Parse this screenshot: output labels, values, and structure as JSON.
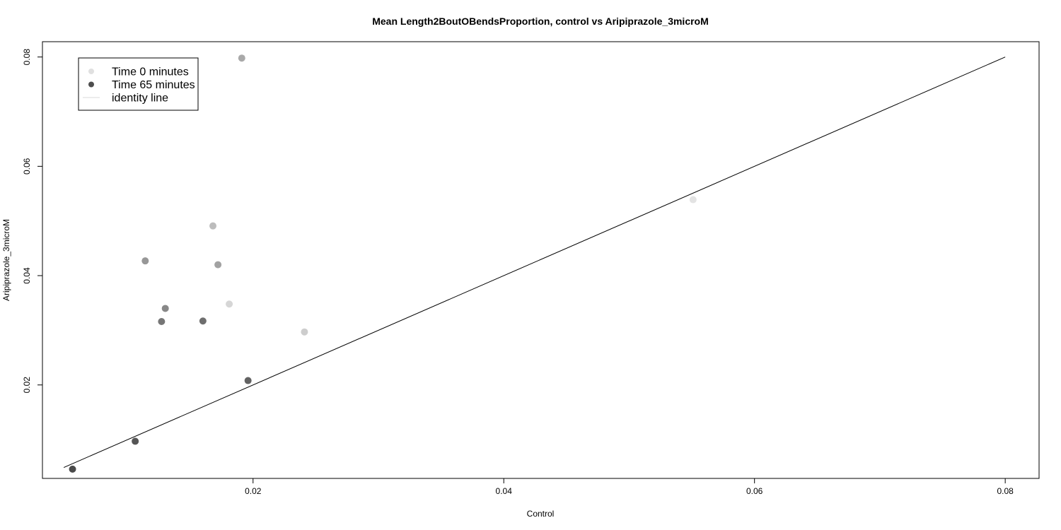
{
  "chart_data": {
    "type": "scatter",
    "title": "Mean Length2BoutOBendsProportion, control vs Aripiprazole_3microM",
    "xlabel": "Control",
    "ylabel": "Aripiprazole_3microM",
    "xlim": [
      0.0032,
      0.0827
    ],
    "ylim": [
      0.0029,
      0.0828
    ],
    "xticks": [
      0.02,
      0.04,
      0.06,
      0.08
    ],
    "xtick_labels": [
      "0.02",
      "0.04",
      "0.06",
      "0.08"
    ],
    "yticks": [
      0.02,
      0.04,
      0.06,
      0.08
    ],
    "ytick_labels": [
      "0.02",
      "0.04",
      "0.06",
      "0.08"
    ],
    "grid": false,
    "legend_position": "top-left",
    "legend": [
      {
        "label": "Time 0 minutes",
        "kind": "point",
        "color": "#e0e0e0"
      },
      {
        "label": "Time 65 minutes",
        "kind": "point",
        "color": "#4d4d4d"
      },
      {
        "label": "identity line",
        "kind": "line",
        "color": "#d8d8d8"
      }
    ],
    "identity_line": {
      "from": [
        0.0049,
        0.0049
      ],
      "to": [
        0.08,
        0.08
      ],
      "color": "#000000"
    },
    "points": [
      {
        "x": 0.0551,
        "y": 0.0539,
        "color": "#e3e3e3"
      },
      {
        "x": 0.0241,
        "y": 0.0297,
        "color": "#cdcdcd"
      },
      {
        "x": 0.0181,
        "y": 0.0348,
        "color": "#d6d6d6"
      },
      {
        "x": 0.0168,
        "y": 0.0491,
        "color": "#bcbcbc"
      },
      {
        "x": 0.0191,
        "y": 0.0798,
        "color": "#a9a9a9"
      },
      {
        "x": 0.0172,
        "y": 0.042,
        "color": "#a2a2a2"
      },
      {
        "x": 0.0114,
        "y": 0.0427,
        "color": "#979797"
      },
      {
        "x": 0.013,
        "y": 0.034,
        "color": "#888888"
      },
      {
        "x": 0.0127,
        "y": 0.0316,
        "color": "#767676"
      },
      {
        "x": 0.016,
        "y": 0.0317,
        "color": "#6e6e6e"
      },
      {
        "x": 0.0196,
        "y": 0.0208,
        "color": "#626262"
      },
      {
        "x": 0.0106,
        "y": 0.0097,
        "color": "#555555"
      },
      {
        "x": 0.0056,
        "y": 0.0046,
        "color": "#4a4a4a"
      }
    ]
  }
}
